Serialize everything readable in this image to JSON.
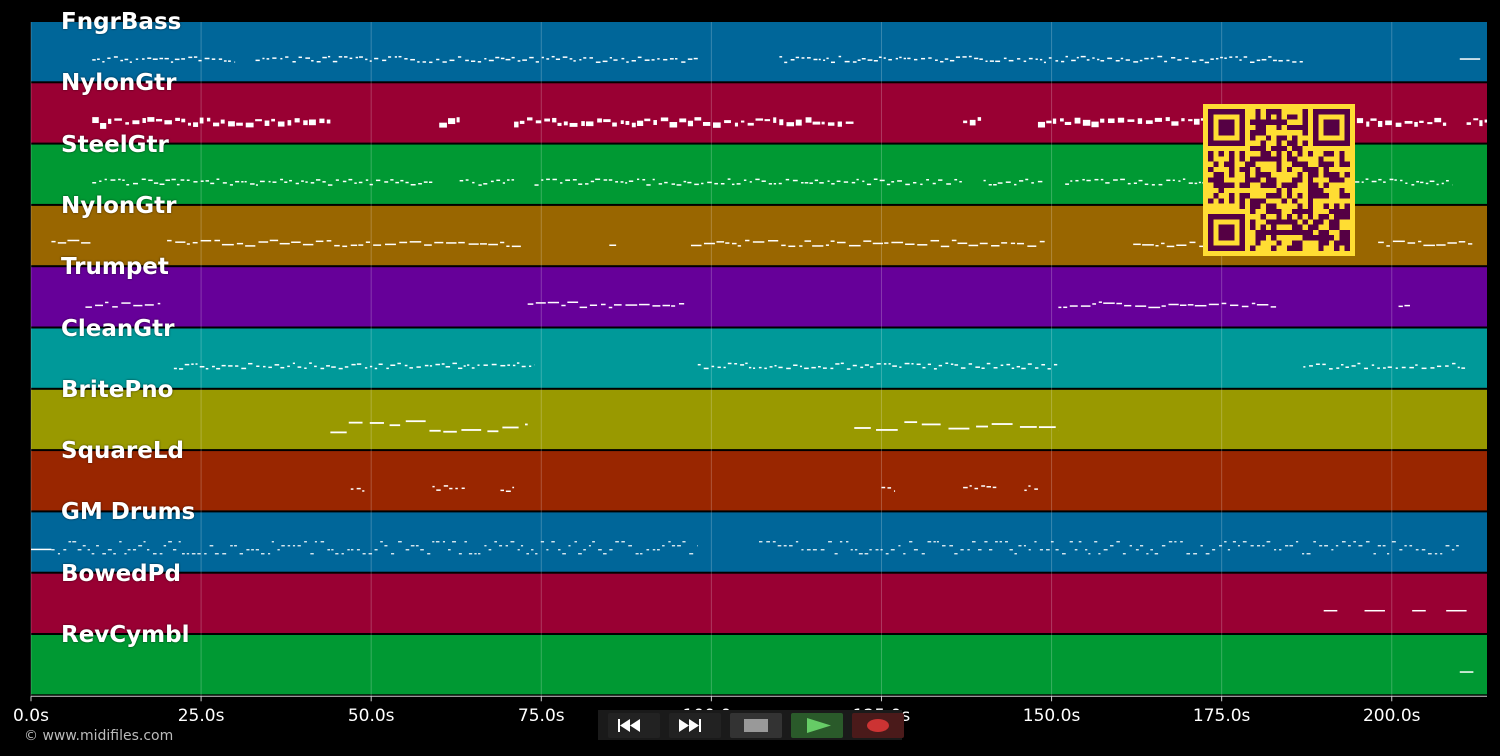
{
  "window": {
    "credit": "© www.midifiles.com"
  },
  "timeline": {
    "max_seconds": 214,
    "ticks": [
      {
        "value": 0,
        "label": "0.0s"
      },
      {
        "value": 25,
        "label": "25.0s"
      },
      {
        "value": 50,
        "label": "50.0s"
      },
      {
        "value": 75,
        "label": "75.0s"
      },
      {
        "value": 100,
        "label": "100.0s"
      },
      {
        "value": 125,
        "label": "125.0s"
      },
      {
        "value": 150,
        "label": "150.0s"
      },
      {
        "value": 175,
        "label": "175.0s"
      },
      {
        "value": 200,
        "label": "200.0s"
      }
    ]
  },
  "tracks": [
    {
      "name": "FngrBass",
      "color": "#006699",
      "segments": [
        [
          9,
          30,
          "dots"
        ],
        [
          33,
          98,
          "dots"
        ],
        [
          110,
          187,
          "dots"
        ],
        [
          210,
          213,
          "line"
        ]
      ]
    },
    {
      "name": "NylonGtr",
      "color": "#990033",
      "segments": [
        [
          9,
          44,
          "blocks"
        ],
        [
          60,
          63,
          "blocks"
        ],
        [
          71,
          121,
          "blocks"
        ],
        [
          137,
          140,
          "blocks"
        ],
        [
          148,
          208,
          "blocks"
        ],
        [
          211,
          214,
          "blocks"
        ]
      ]
    },
    {
      "name": "SteelGtr",
      "color": "#009933",
      "segments": [
        [
          9,
          59,
          "dots"
        ],
        [
          63,
          71,
          "dots"
        ],
        [
          74,
          137,
          "dots"
        ],
        [
          140,
          149,
          "dots"
        ],
        [
          152,
          209,
          "dots"
        ]
      ]
    },
    {
      "name": "NylonGtr",
      "color": "#996600",
      "segments": [
        [
          3,
          9,
          "dash"
        ],
        [
          20,
          72,
          "dash"
        ],
        [
          85,
          86,
          "dash"
        ],
        [
          97,
          149,
          "dash"
        ],
        [
          162,
          178,
          "dash"
        ],
        [
          198,
          212,
          "dash"
        ]
      ]
    },
    {
      "name": "Trumpet",
      "color": "#660099",
      "segments": [
        [
          8,
          19,
          "dash"
        ],
        [
          73,
          96,
          "dash"
        ],
        [
          151,
          183,
          "dash"
        ],
        [
          201,
          203,
          "dash"
        ]
      ]
    },
    {
      "name": "CleanGtr",
      "color": "#009999",
      "segments": [
        [
          21,
          74,
          "dots"
        ],
        [
          98,
          151,
          "dots"
        ],
        [
          187,
          211,
          "dots"
        ]
      ]
    },
    {
      "name": "BritePno",
      "color": "#999900",
      "segments": [
        [
          44,
          73,
          "bars"
        ],
        [
          121,
          151,
          "bars"
        ]
      ]
    },
    {
      "name": "SquareLd",
      "color": "#992600",
      "segments": [
        [
          47,
          49,
          "dots"
        ],
        [
          59,
          64,
          "dots"
        ],
        [
          69,
          71,
          "dots"
        ],
        [
          125,
          127,
          "dots"
        ],
        [
          137,
          142,
          "dots"
        ],
        [
          146,
          148,
          "dots"
        ]
      ]
    },
    {
      "name": "GM Drums",
      "color": "#006699",
      "segments": [
        [
          0,
          3,
          "line"
        ],
        [
          3,
          98,
          "drums"
        ],
        [
          107,
          210,
          "drums"
        ]
      ]
    },
    {
      "name": "BowedPd",
      "color": "#990033",
      "segments": [
        [
          190,
          192,
          "line"
        ],
        [
          196,
          199,
          "line"
        ],
        [
          203,
          205,
          "line"
        ],
        [
          208,
          211,
          "line"
        ]
      ]
    },
    {
      "name": "RevCymbl",
      "color": "#009933",
      "segments": [
        [
          210,
          212,
          "line"
        ]
      ]
    }
  ],
  "transport": {
    "rewind": {
      "icon": "rewind-icon"
    },
    "forward": {
      "icon": "fast-forward-icon"
    },
    "stop": {
      "icon": "stop-icon"
    },
    "play": {
      "icon": "play-icon",
      "color": "#66cc66"
    },
    "record": {
      "icon": "record-icon",
      "color": "#cc3333"
    }
  },
  "qr": {
    "icon": "qr-code-icon",
    "fg": "#550044",
    "bg": "#ffdd33"
  }
}
